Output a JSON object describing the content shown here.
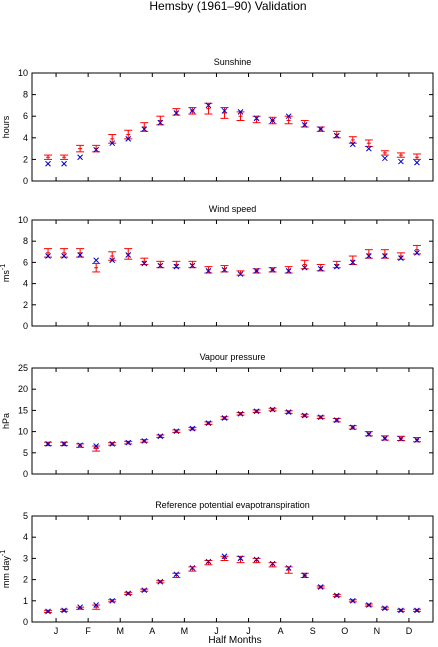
{
  "figure_title": "Hemsby (1961–90) Validation",
  "x_axis": {
    "label": "Half Months",
    "months": [
      "J",
      "F",
      "M",
      "A",
      "M",
      "J",
      "J",
      "A",
      "S",
      "O",
      "N",
      "D"
    ],
    "range": [
      0,
      25
    ]
  },
  "legend": {
    "observed_color": "#ff0000",
    "model_color": "#0000cc",
    "observed_marker": "error-bar",
    "model_marker": "x"
  },
  "chart_data": [
    {
      "type": "scatter",
      "title": "Sunshine",
      "ylabel": "hours",
      "ylabel_sup": "",
      "ylim": [
        0,
        10
      ],
      "yticks": [
        "0",
        "2",
        "4",
        "6",
        "8",
        "10"
      ],
      "yticks_vals": [
        0,
        2,
        4,
        6,
        8,
        10
      ],
      "x": [
        1,
        2,
        3,
        4,
        5,
        6,
        7,
        8,
        9,
        10,
        11,
        12,
        13,
        14,
        15,
        16,
        17,
        18,
        19,
        20,
        21,
        22,
        23,
        24
      ],
      "series": [
        {
          "kind": "observed",
          "values": [
            2.2,
            2.2,
            3.0,
            3.0,
            3.9,
            4.3,
            5.0,
            5.6,
            6.4,
            6.5,
            6.7,
            6.3,
            6.0,
            5.7,
            5.6,
            5.6,
            5.3,
            4.8,
            4.3,
            3.8,
            3.5,
            2.6,
            2.4,
            2.2
          ],
          "err_low": [
            2.0,
            2.0,
            2.7,
            2.7,
            3.5,
            3.9,
            4.6,
            5.2,
            6.1,
            6.2,
            6.2,
            5.8,
            5.6,
            5.4,
            5.3,
            5.3,
            5.0,
            4.6,
            4.0,
            3.5,
            3.2,
            2.4,
            2.2,
            2.0
          ],
          "err_high": [
            2.4,
            2.4,
            3.3,
            3.3,
            4.3,
            4.7,
            5.4,
            6.0,
            6.7,
            6.8,
            7.2,
            6.8,
            6.4,
            6.0,
            5.9,
            6.0,
            5.6,
            5.0,
            4.6,
            4.1,
            3.8,
            2.8,
            2.6,
            2.5
          ]
        },
        {
          "kind": "model",
          "values": [
            1.6,
            1.6,
            2.2,
            2.9,
            3.5,
            3.9,
            4.8,
            5.4,
            6.3,
            6.5,
            7.0,
            6.5,
            6.4,
            5.8,
            5.6,
            6.0,
            5.2,
            4.8,
            4.2,
            3.4,
            3.0,
            2.1,
            1.8,
            1.7
          ]
        }
      ]
    },
    {
      "type": "scatter",
      "title": "Wind speed",
      "ylabel": "ms",
      "ylabel_sup": "-1",
      "ylim": [
        0,
        10
      ],
      "yticks": [
        "0",
        "2",
        "4",
        "6",
        "8",
        "10"
      ],
      "yticks_vals": [
        0,
        2,
        4,
        6,
        8,
        10
      ],
      "x": [
        1,
        2,
        3,
        4,
        5,
        6,
        7,
        8,
        9,
        10,
        11,
        12,
        13,
        14,
        15,
        16,
        17,
        18,
        19,
        20,
        21,
        22,
        23,
        24
      ],
      "series": [
        {
          "kind": "observed",
          "values": [
            6.9,
            6.9,
            6.9,
            5.5,
            6.6,
            6.8,
            6.1,
            5.8,
            5.8,
            5.8,
            5.3,
            5.4,
            5.0,
            5.2,
            5.3,
            5.3,
            5.8,
            5.5,
            5.8,
            6.2,
            6.8,
            6.8,
            6.6,
            7.2
          ],
          "err_low": [
            6.5,
            6.5,
            6.5,
            5.1,
            6.2,
            6.3,
            5.8,
            5.5,
            5.5,
            5.5,
            5.0,
            5.1,
            4.8,
            5.0,
            5.1,
            5.0,
            5.4,
            5.2,
            5.5,
            5.8,
            6.4,
            6.4,
            6.3,
            6.8
          ],
          "err_high": [
            7.3,
            7.3,
            7.3,
            5.9,
            7.0,
            7.3,
            6.4,
            6.1,
            6.1,
            6.1,
            5.6,
            5.7,
            5.2,
            5.4,
            5.5,
            5.6,
            6.2,
            5.8,
            6.1,
            6.6,
            7.2,
            7.2,
            6.9,
            7.6
          ]
        },
        {
          "kind": "model",
          "values": [
            6.6,
            6.6,
            6.7,
            6.2,
            6.2,
            6.7,
            5.9,
            5.7,
            5.6,
            5.7,
            5.2,
            5.3,
            4.9,
            5.2,
            5.3,
            5.2,
            5.5,
            5.4,
            5.6,
            6.0,
            6.6,
            6.6,
            6.4,
            6.9
          ]
        }
      ]
    },
    {
      "type": "scatter",
      "title": "Vapour pressure",
      "ylabel": "hPa",
      "ylabel_sup": "",
      "ylim": [
        0,
        25
      ],
      "yticks": [
        "0",
        "5",
        "10",
        "15",
        "20",
        "25"
      ],
      "yticks_vals": [
        0,
        5,
        10,
        15,
        20,
        25
      ],
      "x": [
        1,
        2,
        3,
        4,
        5,
        6,
        7,
        8,
        9,
        10,
        11,
        12,
        13,
        14,
        15,
        16,
        17,
        18,
        19,
        20,
        21,
        22,
        23,
        24
      ],
      "series": [
        {
          "kind": "observed",
          "values": [
            7.1,
            7.1,
            6.7,
            6.0,
            7.1,
            7.4,
            7.8,
            8.9,
            10.1,
            10.7,
            12.0,
            13.2,
            14.2,
            14.8,
            15.2,
            14.6,
            13.8,
            13.4,
            12.7,
            11.0,
            9.5,
            8.5,
            8.4,
            8.1
          ],
          "err_low": [
            6.7,
            6.7,
            6.3,
            5.4,
            6.8,
            7.1,
            7.5,
            8.6,
            9.8,
            10.4,
            11.7,
            12.9,
            13.9,
            14.5,
            14.9,
            14.3,
            13.5,
            13.1,
            12.3,
            10.6,
            9.0,
            8.0,
            7.9,
            7.6
          ],
          "err_high": [
            7.5,
            7.5,
            7.1,
            6.6,
            7.4,
            7.7,
            8.1,
            9.2,
            10.4,
            11.0,
            12.3,
            13.5,
            14.5,
            15.1,
            15.5,
            14.9,
            14.1,
            13.7,
            13.1,
            11.4,
            10.0,
            9.0,
            8.9,
            8.6
          ]
        },
        {
          "kind": "model",
          "values": [
            7.1,
            7.1,
            6.8,
            6.6,
            7.1,
            7.4,
            7.8,
            8.9,
            10.1,
            10.7,
            12.0,
            13.2,
            14.2,
            14.8,
            15.2,
            14.6,
            13.8,
            13.4,
            12.7,
            11.0,
            9.4,
            8.4,
            8.3,
            8.0
          ]
        }
      ]
    },
    {
      "type": "scatter",
      "title": "Reference potential evapotranspiration",
      "ylabel": "mm day",
      "ylabel_sup": "-1",
      "ylim": [
        0,
        5
      ],
      "yticks": [
        "0",
        "1",
        "2",
        "3",
        "4",
        "5"
      ],
      "yticks_vals": [
        0,
        1,
        2,
        3,
        4,
        5
      ],
      "x": [
        1,
        2,
        3,
        4,
        5,
        6,
        7,
        8,
        9,
        10,
        11,
        12,
        13,
        14,
        15,
        16,
        17,
        18,
        19,
        20,
        21,
        22,
        23,
        24
      ],
      "series": [
        {
          "kind": "observed",
          "values": [
            0.5,
            0.55,
            0.65,
            0.7,
            1.0,
            1.35,
            1.5,
            1.9,
            2.2,
            2.5,
            2.8,
            3.0,
            2.95,
            2.9,
            2.7,
            2.45,
            2.2,
            1.65,
            1.25,
            1.0,
            0.8,
            0.65,
            0.55,
            0.55
          ],
          "err_low": [
            0.45,
            0.5,
            0.6,
            0.6,
            0.95,
            1.3,
            1.45,
            1.85,
            2.1,
            2.4,
            2.7,
            2.9,
            2.8,
            2.8,
            2.6,
            2.3,
            2.1,
            1.6,
            1.2,
            0.95,
            0.75,
            0.6,
            0.5,
            0.5
          ],
          "err_high": [
            0.55,
            0.6,
            0.7,
            0.8,
            1.05,
            1.4,
            1.55,
            1.95,
            2.3,
            2.6,
            2.9,
            3.1,
            3.1,
            3.0,
            2.8,
            2.6,
            2.3,
            1.7,
            1.3,
            1.05,
            0.85,
            0.7,
            0.6,
            0.6
          ]
        },
        {
          "kind": "model",
          "values": [
            0.5,
            0.55,
            0.7,
            0.8,
            1.0,
            1.35,
            1.5,
            1.9,
            2.25,
            2.55,
            2.85,
            3.1,
            3.0,
            2.95,
            2.75,
            2.55,
            2.2,
            1.65,
            1.25,
            1.0,
            0.8,
            0.65,
            0.55,
            0.55
          ]
        }
      ]
    }
  ]
}
